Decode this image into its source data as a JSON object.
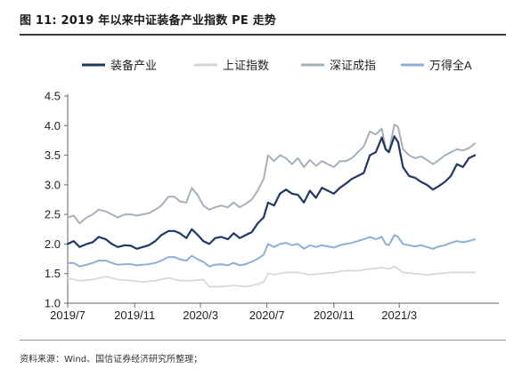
{
  "figure": {
    "title": "图 11:  2019 年以来中证装备产业指数 PE 走势",
    "source": "资料来源：Wind、国信证券经济研究所整理；"
  },
  "chart_data": {
    "type": "line",
    "title": "",
    "xlabel": "",
    "ylabel": "",
    "x_ticks": [
      "2019/7",
      "2019/11",
      "2020/3",
      "2020/7",
      "2020/11",
      "2021/3"
    ],
    "y_ticks": [
      "1.0",
      "1.5",
      "2.0",
      "2.5",
      "3.0",
      "3.5",
      "4.0",
      "4.5"
    ],
    "ylim": [
      1.0,
      4.5
    ],
    "x_range": [
      "2019-07-01",
      "2021-08-31"
    ],
    "legend_position": "top",
    "grid": false,
    "series": [
      {
        "name": "装备产业",
        "color": "#1f3864",
        "width": 2.2,
        "points": [
          [
            "2019-07-01",
            2.0
          ],
          [
            "2019-07-12",
            2.05
          ],
          [
            "2019-07-23",
            1.95
          ],
          [
            "2019-08-05",
            2.0
          ],
          [
            "2019-08-16",
            2.03
          ],
          [
            "2019-08-27",
            2.12
          ],
          [
            "2019-09-09",
            2.08
          ],
          [
            "2019-09-20",
            2.0
          ],
          [
            "2019-10-01",
            1.95
          ],
          [
            "2019-10-14",
            1.98
          ],
          [
            "2019-10-25",
            1.97
          ],
          [
            "2019-11-05",
            1.92
          ],
          [
            "2019-11-16",
            1.95
          ],
          [
            "2019-11-27",
            1.98
          ],
          [
            "2019-12-09",
            2.05
          ],
          [
            "2019-12-20",
            2.15
          ],
          [
            "2020-01-02",
            2.22
          ],
          [
            "2020-01-13",
            2.22
          ],
          [
            "2020-01-23",
            2.18
          ],
          [
            "2020-02-04",
            2.1
          ],
          [
            "2020-02-14",
            2.25
          ],
          [
            "2020-02-25",
            2.15
          ],
          [
            "2020-03-06",
            2.05
          ],
          [
            "2020-03-17",
            2.0
          ],
          [
            "2020-03-28",
            2.1
          ],
          [
            "2020-04-08",
            2.12
          ],
          [
            "2020-04-20",
            2.08
          ],
          [
            "2020-05-01",
            2.18
          ],
          [
            "2020-05-12",
            2.1
          ],
          [
            "2020-05-23",
            2.15
          ],
          [
            "2020-06-03",
            2.2
          ],
          [
            "2020-06-14",
            2.35
          ],
          [
            "2020-06-25",
            2.45
          ],
          [
            "2020-07-03",
            2.7
          ],
          [
            "2020-07-14",
            2.65
          ],
          [
            "2020-07-25",
            2.85
          ],
          [
            "2020-08-05",
            2.92
          ],
          [
            "2020-08-16",
            2.85
          ],
          [
            "2020-08-27",
            2.83
          ],
          [
            "2020-09-07",
            2.7
          ],
          [
            "2020-09-18",
            2.9
          ],
          [
            "2020-09-29",
            2.78
          ],
          [
            "2020-10-10",
            2.95
          ],
          [
            "2020-10-21",
            2.9
          ],
          [
            "2020-11-01",
            2.85
          ],
          [
            "2020-11-12",
            2.95
          ],
          [
            "2020-11-23",
            3.02
          ],
          [
            "2020-12-04",
            3.1
          ],
          [
            "2020-12-15",
            3.15
          ],
          [
            "2020-12-26",
            3.2
          ],
          [
            "2021-01-06",
            3.5
          ],
          [
            "2021-01-17",
            3.55
          ],
          [
            "2021-01-28",
            3.8
          ],
          [
            "2021-02-04",
            3.6
          ],
          [
            "2021-02-10",
            3.55
          ],
          [
            "2021-02-20",
            3.82
          ],
          [
            "2021-02-27",
            3.72
          ],
          [
            "2021-03-08",
            3.3
          ],
          [
            "2021-03-19",
            3.15
          ],
          [
            "2021-03-30",
            3.12
          ],
          [
            "2021-04-10",
            3.05
          ],
          [
            "2021-04-21",
            3.0
          ],
          [
            "2021-05-02",
            2.92
          ],
          [
            "2021-05-13",
            2.98
          ],
          [
            "2021-05-24",
            3.05
          ],
          [
            "2021-06-04",
            3.15
          ],
          [
            "2021-06-15",
            3.35
          ],
          [
            "2021-06-26",
            3.3
          ],
          [
            "2021-07-07",
            3.45
          ],
          [
            "2021-07-18",
            3.5
          ]
        ]
      },
      {
        "name": "上证指数",
        "color": "#d4d4d4",
        "width": 1.6,
        "points": [
          [
            "2019-07-01",
            1.42
          ],
          [
            "2019-07-23",
            1.38
          ],
          [
            "2019-08-16",
            1.4
          ],
          [
            "2019-09-09",
            1.45
          ],
          [
            "2019-10-01",
            1.4
          ],
          [
            "2019-10-25",
            1.38
          ],
          [
            "2019-11-16",
            1.36
          ],
          [
            "2019-12-09",
            1.38
          ],
          [
            "2020-01-02",
            1.43
          ],
          [
            "2020-01-23",
            1.38
          ],
          [
            "2020-02-14",
            1.38
          ],
          [
            "2020-03-06",
            1.4
          ],
          [
            "2020-03-17",
            1.28
          ],
          [
            "2020-04-08",
            1.28
          ],
          [
            "2020-05-01",
            1.3
          ],
          [
            "2020-05-23",
            1.28
          ],
          [
            "2020-06-14",
            1.32
          ],
          [
            "2020-06-25",
            1.36
          ],
          [
            "2020-07-03",
            1.5
          ],
          [
            "2020-07-14",
            1.48
          ],
          [
            "2020-08-05",
            1.52
          ],
          [
            "2020-08-27",
            1.52
          ],
          [
            "2020-09-18",
            1.48
          ],
          [
            "2020-10-10",
            1.5
          ],
          [
            "2020-11-01",
            1.52
          ],
          [
            "2020-11-23",
            1.55
          ],
          [
            "2020-12-15",
            1.55
          ],
          [
            "2021-01-06",
            1.58
          ],
          [
            "2021-01-28",
            1.6
          ],
          [
            "2021-02-10",
            1.58
          ],
          [
            "2021-02-20",
            1.62
          ],
          [
            "2021-03-08",
            1.52
          ],
          [
            "2021-03-30",
            1.5
          ],
          [
            "2021-04-21",
            1.48
          ],
          [
            "2021-05-13",
            1.5
          ],
          [
            "2021-06-04",
            1.52
          ],
          [
            "2021-06-26",
            1.52
          ],
          [
            "2021-07-18",
            1.52
          ]
        ]
      },
      {
        "name": "深证成指",
        "color": "#a6b0bc",
        "width": 2.0,
        "points": [
          [
            "2019-07-01",
            2.45
          ],
          [
            "2019-07-12",
            2.48
          ],
          [
            "2019-07-23",
            2.35
          ],
          [
            "2019-08-05",
            2.45
          ],
          [
            "2019-08-16",
            2.5
          ],
          [
            "2019-08-27",
            2.58
          ],
          [
            "2019-09-09",
            2.55
          ],
          [
            "2019-09-20",
            2.5
          ],
          [
            "2019-10-01",
            2.45
          ],
          [
            "2019-10-14",
            2.5
          ],
          [
            "2019-10-25",
            2.5
          ],
          [
            "2019-11-05",
            2.48
          ],
          [
            "2019-11-16",
            2.5
          ],
          [
            "2019-11-27",
            2.52
          ],
          [
            "2019-12-09",
            2.58
          ],
          [
            "2019-12-20",
            2.65
          ],
          [
            "2020-01-02",
            2.8
          ],
          [
            "2020-01-13",
            2.8
          ],
          [
            "2020-01-23",
            2.72
          ],
          [
            "2020-02-04",
            2.7
          ],
          [
            "2020-02-14",
            2.95
          ],
          [
            "2020-02-25",
            2.82
          ],
          [
            "2020-03-06",
            2.65
          ],
          [
            "2020-03-17",
            2.58
          ],
          [
            "2020-03-28",
            2.62
          ],
          [
            "2020-04-08",
            2.65
          ],
          [
            "2020-04-20",
            2.62
          ],
          [
            "2020-05-01",
            2.7
          ],
          [
            "2020-05-12",
            2.62
          ],
          [
            "2020-05-23",
            2.68
          ],
          [
            "2020-06-03",
            2.75
          ],
          [
            "2020-06-14",
            2.9
          ],
          [
            "2020-06-25",
            3.1
          ],
          [
            "2020-07-03",
            3.5
          ],
          [
            "2020-07-14",
            3.4
          ],
          [
            "2020-07-25",
            3.5
          ],
          [
            "2020-08-05",
            3.45
          ],
          [
            "2020-08-16",
            3.35
          ],
          [
            "2020-08-27",
            3.45
          ],
          [
            "2020-09-07",
            3.3
          ],
          [
            "2020-09-18",
            3.42
          ],
          [
            "2020-09-29",
            3.32
          ],
          [
            "2020-10-10",
            3.4
          ],
          [
            "2020-10-21",
            3.35
          ],
          [
            "2020-11-01",
            3.3
          ],
          [
            "2020-11-12",
            3.4
          ],
          [
            "2020-11-23",
            3.4
          ],
          [
            "2020-12-04",
            3.45
          ],
          [
            "2020-12-15",
            3.55
          ],
          [
            "2020-12-26",
            3.65
          ],
          [
            "2021-01-06",
            3.9
          ],
          [
            "2021-01-17",
            3.85
          ],
          [
            "2021-01-28",
            3.95
          ],
          [
            "2021-02-04",
            3.62
          ],
          [
            "2021-02-10",
            3.55
          ],
          [
            "2021-02-20",
            4.02
          ],
          [
            "2021-02-27",
            3.98
          ],
          [
            "2021-03-08",
            3.6
          ],
          [
            "2021-03-19",
            3.5
          ],
          [
            "2021-03-30",
            3.45
          ],
          [
            "2021-04-10",
            3.48
          ],
          [
            "2021-04-21",
            3.42
          ],
          [
            "2021-05-02",
            3.35
          ],
          [
            "2021-05-13",
            3.42
          ],
          [
            "2021-05-24",
            3.5
          ],
          [
            "2021-06-04",
            3.55
          ],
          [
            "2021-06-15",
            3.6
          ],
          [
            "2021-06-26",
            3.58
          ],
          [
            "2021-07-07",
            3.62
          ],
          [
            "2021-07-18",
            3.7
          ]
        ]
      },
      {
        "name": "万得全A",
        "color": "#8eafd8",
        "width": 2.0,
        "points": [
          [
            "2019-07-01",
            1.68
          ],
          [
            "2019-07-12",
            1.68
          ],
          [
            "2019-07-23",
            1.62
          ],
          [
            "2019-08-05",
            1.65
          ],
          [
            "2019-08-16",
            1.68
          ],
          [
            "2019-08-27",
            1.72
          ],
          [
            "2019-09-09",
            1.72
          ],
          [
            "2019-09-20",
            1.68
          ],
          [
            "2019-10-01",
            1.65
          ],
          [
            "2019-10-14",
            1.66
          ],
          [
            "2019-10-25",
            1.66
          ],
          [
            "2019-11-05",
            1.64
          ],
          [
            "2019-11-16",
            1.65
          ],
          [
            "2019-11-27",
            1.66
          ],
          [
            "2019-12-09",
            1.68
          ],
          [
            "2019-12-20",
            1.72
          ],
          [
            "2020-01-02",
            1.78
          ],
          [
            "2020-01-13",
            1.78
          ],
          [
            "2020-01-23",
            1.74
          ],
          [
            "2020-02-04",
            1.72
          ],
          [
            "2020-02-14",
            1.8
          ],
          [
            "2020-02-25",
            1.74
          ],
          [
            "2020-03-06",
            1.7
          ],
          [
            "2020-03-17",
            1.62
          ],
          [
            "2020-03-28",
            1.65
          ],
          [
            "2020-04-08",
            1.66
          ],
          [
            "2020-04-20",
            1.64
          ],
          [
            "2020-05-01",
            1.68
          ],
          [
            "2020-05-12",
            1.64
          ],
          [
            "2020-05-23",
            1.66
          ],
          [
            "2020-06-03",
            1.7
          ],
          [
            "2020-06-14",
            1.75
          ],
          [
            "2020-06-25",
            1.82
          ],
          [
            "2020-07-03",
            2.0
          ],
          [
            "2020-07-14",
            1.95
          ],
          [
            "2020-07-25",
            2.0
          ],
          [
            "2020-08-05",
            2.02
          ],
          [
            "2020-08-16",
            1.98
          ],
          [
            "2020-08-27",
            2.0
          ],
          [
            "2020-09-07",
            1.92
          ],
          [
            "2020-09-18",
            1.98
          ],
          [
            "2020-09-29",
            1.95
          ],
          [
            "2020-10-10",
            1.98
          ],
          [
            "2020-10-21",
            1.96
          ],
          [
            "2020-11-01",
            1.94
          ],
          [
            "2020-11-12",
            1.98
          ],
          [
            "2020-11-23",
            2.0
          ],
          [
            "2020-12-04",
            2.02
          ],
          [
            "2020-12-15",
            2.05
          ],
          [
            "2020-12-26",
            2.08
          ],
          [
            "2021-01-06",
            2.12
          ],
          [
            "2021-01-17",
            2.08
          ],
          [
            "2021-01-28",
            2.12
          ],
          [
            "2021-02-04",
            2.0
          ],
          [
            "2021-02-10",
            1.98
          ],
          [
            "2021-02-20",
            2.15
          ],
          [
            "2021-02-27",
            2.12
          ],
          [
            "2021-03-08",
            2.0
          ],
          [
            "2021-03-19",
            1.98
          ],
          [
            "2021-03-30",
            1.96
          ],
          [
            "2021-04-10",
            1.98
          ],
          [
            "2021-04-21",
            1.95
          ],
          [
            "2021-05-02",
            1.92
          ],
          [
            "2021-05-13",
            1.96
          ],
          [
            "2021-05-24",
            1.98
          ],
          [
            "2021-06-04",
            2.02
          ],
          [
            "2021-06-15",
            2.05
          ],
          [
            "2021-06-26",
            2.03
          ],
          [
            "2021-07-07",
            2.05
          ],
          [
            "2021-07-18",
            2.08
          ]
        ]
      }
    ]
  }
}
